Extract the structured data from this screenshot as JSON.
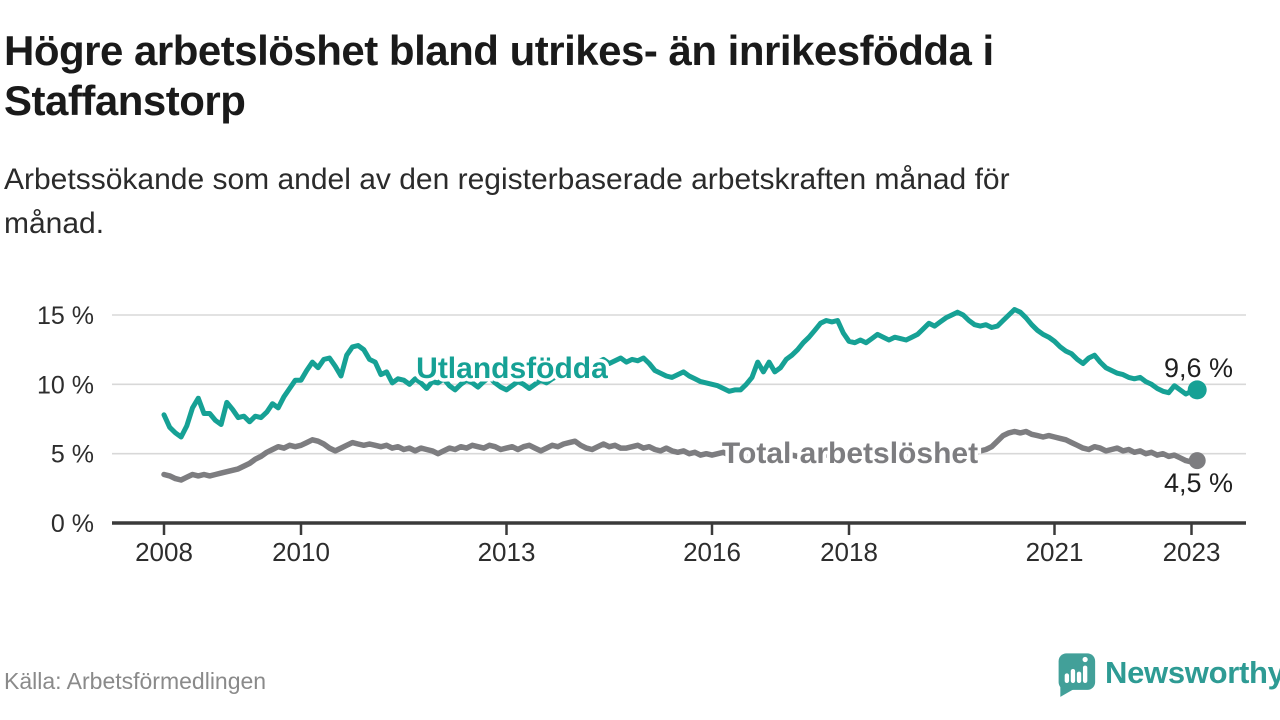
{
  "header": {
    "title": "Högre arbetslöshet bland utrikes- än inrikesfödda i\nStaffanstorp",
    "subtitle": "Arbetssökande som andel av den registerbaserade arbetskraften månad för\nmånad."
  },
  "footer": {
    "source": "Källa: Arbetsförmedlingen",
    "brand": "Newsworthy"
  },
  "colors": {
    "accent_teal": "#16a195",
    "series_gray": "#7d7d80",
    "title_text": "#1a1a1a",
    "axis_text": "#2d2d2d",
    "gridline": "#d8d8d8",
    "axis_line": "#3a3a3a",
    "source_text": "#8a8a8a",
    "brand_teal": "#2e9b94",
    "logo_fill": "#42a099"
  },
  "chart_data": {
    "type": "line",
    "title": "Högre arbetslöshet bland utrikes- än inrikesfödda i Staffanstorp",
    "subtitle": "Arbetssökande som andel av den registerbaserade arbetskraften månad för månad.",
    "xlabel": "",
    "ylabel": "",
    "x_start_year": 2008,
    "x_interval": "monthly",
    "x_ticks": [
      2008,
      2010,
      2013,
      2016,
      2018,
      2021,
      2023
    ],
    "y_ticks": [
      0,
      5,
      10,
      15
    ],
    "y_tick_suffix": " %",
    "ylim": [
      0,
      16
    ],
    "grid": "horizontal",
    "legend_position": "inline-labels",
    "series": [
      {
        "name": "Utlandsfödda",
        "color": "#16a195",
        "end_label": "9,6 %",
        "last_value": 9.6,
        "values": [
          7.8,
          6.9,
          6.5,
          6.2,
          7.0,
          8.3,
          9.0,
          7.9,
          7.9,
          7.4,
          7.1,
          8.7,
          8.2,
          7.6,
          7.7,
          7.3,
          7.7,
          7.6,
          8.0,
          8.6,
          8.3,
          9.1,
          9.7,
          10.3,
          10.3,
          11.0,
          11.6,
          11.2,
          11.8,
          11.9,
          11.3,
          10.6,
          12.1,
          12.7,
          12.8,
          12.5,
          11.8,
          11.6,
          10.7,
          10.9,
          10.1,
          10.4,
          10.3,
          10.0,
          10.4,
          10.1,
          9.7,
          10.2,
          10.1,
          10.4,
          9.9,
          9.6,
          10.0,
          10.3,
          10.1,
          9.8,
          10.2,
          10.5,
          10.1,
          9.8,
          9.6,
          9.9,
          10.2,
          10.0,
          9.7,
          10.0,
          10.3,
          10.1,
          10.4,
          10.6,
          10.9,
          11.2,
          11.0,
          11.3,
          11.6,
          11.4,
          11.6,
          11.8,
          11.5,
          11.7,
          11.9,
          11.6,
          11.8,
          11.7,
          11.9,
          11.5,
          11.0,
          10.8,
          10.6,
          10.5,
          10.7,
          10.9,
          10.6,
          10.4,
          10.2,
          10.1,
          10.0,
          9.9,
          9.7,
          9.5,
          9.6,
          9.6,
          10.0,
          10.5,
          11.6,
          10.9,
          11.6,
          10.9,
          11.2,
          11.8,
          12.1,
          12.5,
          13.0,
          13.4,
          13.9,
          14.4,
          14.6,
          14.5,
          14.6,
          13.7,
          13.1,
          13.0,
          13.2,
          13.0,
          13.3,
          13.6,
          13.4,
          13.2,
          13.4,
          13.3,
          13.2,
          13.4,
          13.6,
          14.0,
          14.4,
          14.2,
          14.5,
          14.8,
          15.0,
          15.2,
          15.0,
          14.6,
          14.3,
          14.2,
          14.3,
          14.1,
          14.2,
          14.6,
          15.0,
          15.4,
          15.2,
          14.8,
          14.3,
          13.9,
          13.6,
          13.4,
          13.1,
          12.7,
          12.4,
          12.2,
          11.8,
          11.5,
          11.9,
          12.1,
          11.6,
          11.2,
          11.0,
          10.8,
          10.7,
          10.5,
          10.4,
          10.5,
          10.2,
          10.0,
          9.7,
          9.5,
          9.4,
          9.9,
          9.6,
          9.3,
          9.5,
          9.6
        ]
      },
      {
        "name": "Total arbetslöshet",
        "color": "#7d7d80",
        "end_label": "4,5 %",
        "last_value": 4.5,
        "values": [
          3.5,
          3.4,
          3.2,
          3.1,
          3.3,
          3.5,
          3.4,
          3.5,
          3.4,
          3.5,
          3.6,
          3.7,
          3.8,
          3.9,
          4.1,
          4.3,
          4.6,
          4.8,
          5.1,
          5.3,
          5.5,
          5.4,
          5.6,
          5.5,
          5.6,
          5.8,
          6.0,
          5.9,
          5.7,
          5.4,
          5.2,
          5.4,
          5.6,
          5.8,
          5.7,
          5.6,
          5.7,
          5.6,
          5.5,
          5.6,
          5.4,
          5.5,
          5.3,
          5.4,
          5.2,
          5.4,
          5.3,
          5.2,
          5.0,
          5.2,
          5.4,
          5.3,
          5.5,
          5.4,
          5.6,
          5.5,
          5.4,
          5.6,
          5.5,
          5.3,
          5.4,
          5.5,
          5.3,
          5.5,
          5.6,
          5.4,
          5.2,
          5.4,
          5.6,
          5.5,
          5.7,
          5.8,
          5.9,
          5.6,
          5.4,
          5.3,
          5.5,
          5.7,
          5.5,
          5.6,
          5.4,
          5.4,
          5.5,
          5.6,
          5.4,
          5.5,
          5.3,
          5.2,
          5.4,
          5.2,
          5.1,
          5.2,
          5.0,
          5.1,
          4.9,
          5.0,
          4.9,
          5.0,
          5.1,
          4.9,
          5.0,
          4.8,
          4.9,
          4.8,
          4.9,
          5.0,
          4.9,
          4.8,
          4.7,
          4.8,
          4.9,
          4.8,
          4.9,
          5.0,
          4.9,
          5.0,
          4.9,
          5.0,
          4.9,
          4.8,
          4.9,
          4.8,
          4.9,
          5.0,
          4.9,
          5.0,
          4.9,
          5.0,
          4.9,
          4.8,
          4.9,
          5.0,
          4.9,
          5.0,
          5.1,
          5.0,
          5.1,
          5.2,
          5.1,
          5.0,
          5.1,
          5.0,
          5.1,
          5.2,
          5.3,
          5.5,
          5.9,
          6.3,
          6.5,
          6.6,
          6.5,
          6.6,
          6.4,
          6.3,
          6.2,
          6.3,
          6.2,
          6.1,
          6.0,
          5.8,
          5.6,
          5.4,
          5.3,
          5.5,
          5.4,
          5.2,
          5.3,
          5.4,
          5.2,
          5.3,
          5.1,
          5.2,
          5.0,
          5.1,
          4.9,
          5.0,
          4.8,
          4.9,
          4.7,
          4.5,
          4.4,
          4.5
        ]
      }
    ]
  }
}
